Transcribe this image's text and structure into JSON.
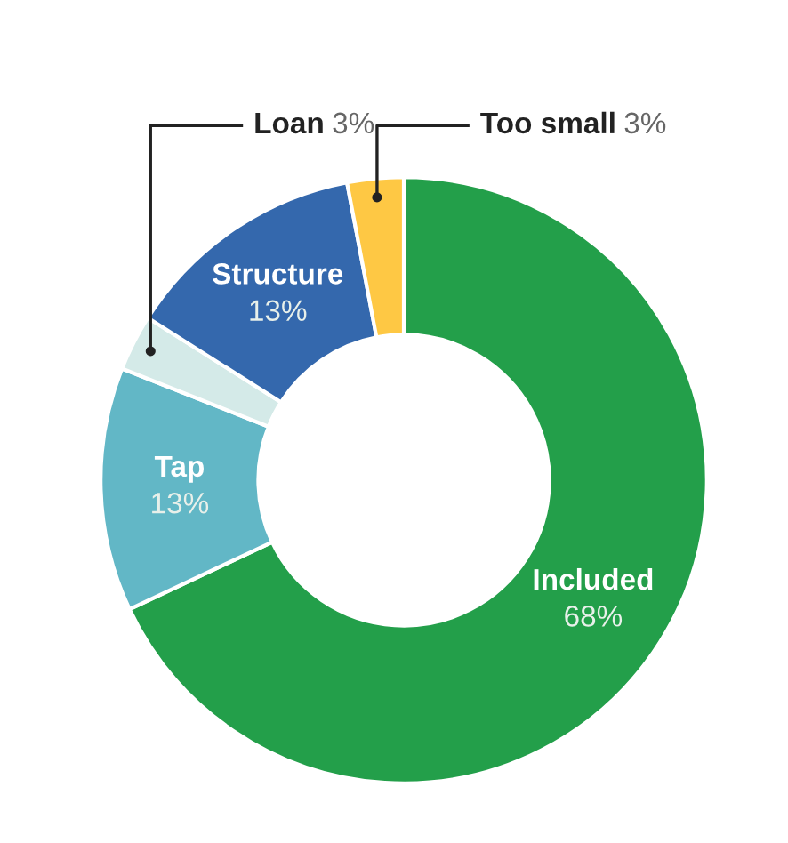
{
  "chart_data": {
    "type": "donut",
    "categories": [
      "Included",
      "Tap",
      "Loan",
      "Structure",
      "Too small"
    ],
    "values": [
      68,
      13,
      3,
      13,
      3
    ],
    "value_labels": [
      "68%",
      "13%",
      "3%",
      "13%",
      "3%"
    ],
    "colors": [
      "#239f4a",
      "#62b7c6",
      "#d4eae8",
      "#3468ad",
      "#fec844"
    ],
    "legend": false
  }
}
